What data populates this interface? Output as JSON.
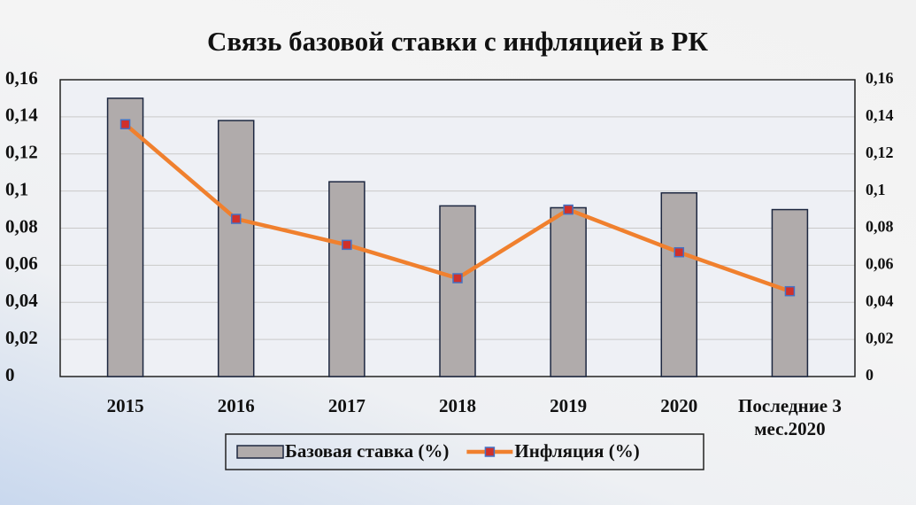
{
  "chart_data": {
    "type": "bar-line",
    "title": "Связь базовой ставки с инфляцией в РК",
    "categories": [
      "2015",
      "2016",
      "2017",
      "2018",
      "2019",
      "2020",
      "Последние 3 мес.2020"
    ],
    "series": [
      {
        "name": "Базовая ставка (%)",
        "type": "bar",
        "color": "#b0abab",
        "values": [
          0.15,
          0.138,
          0.105,
          0.092,
          0.091,
          0.099,
          0.09
        ]
      },
      {
        "name": "Инфляция (%)",
        "type": "line",
        "axis": "y2",
        "color": "#f0802e",
        "marker_color": "#d0302a",
        "values": [
          0.136,
          0.085,
          0.071,
          0.053,
          0.09,
          0.067,
          0.046
        ]
      }
    ],
    "ylim": [
      0,
      0.16
    ],
    "yticks": [
      0,
      {
        "value": 0.02,
        "label": "0,02"
      },
      {
        "value": 0.04,
        "label": "0,04"
      },
      {
        "value": 0.06,
        "label": "0,06"
      },
      {
        "value": 0.08,
        "label": "0,08"
      },
      {
        "value": 0.1,
        "label": "0,1"
      },
      {
        "value": 0.12,
        "label": "0,12"
      },
      {
        "value": 0.14,
        "label": "0,14"
      },
      {
        "value": 0.16,
        "label": "0,16"
      }
    ],
    "y2lim": [
      0,
      0.16
    ],
    "y2ticks": [
      0,
      {
        "value": 0.02,
        "label": "0,02"
      },
      {
        "value": 0.04,
        "label": "0,04"
      },
      {
        "value": 0.06,
        "label": "0,06"
      },
      {
        "value": 0.08,
        "label": "0,08"
      },
      {
        "value": 0.1,
        "label": "0,1"
      },
      {
        "value": 0.12,
        "label": "0,12"
      },
      {
        "value": 0.14,
        "label": "0,14"
      },
      {
        "value": 0.16,
        "label": "0,16"
      }
    ],
    "grid": true,
    "legend": "bottom"
  }
}
